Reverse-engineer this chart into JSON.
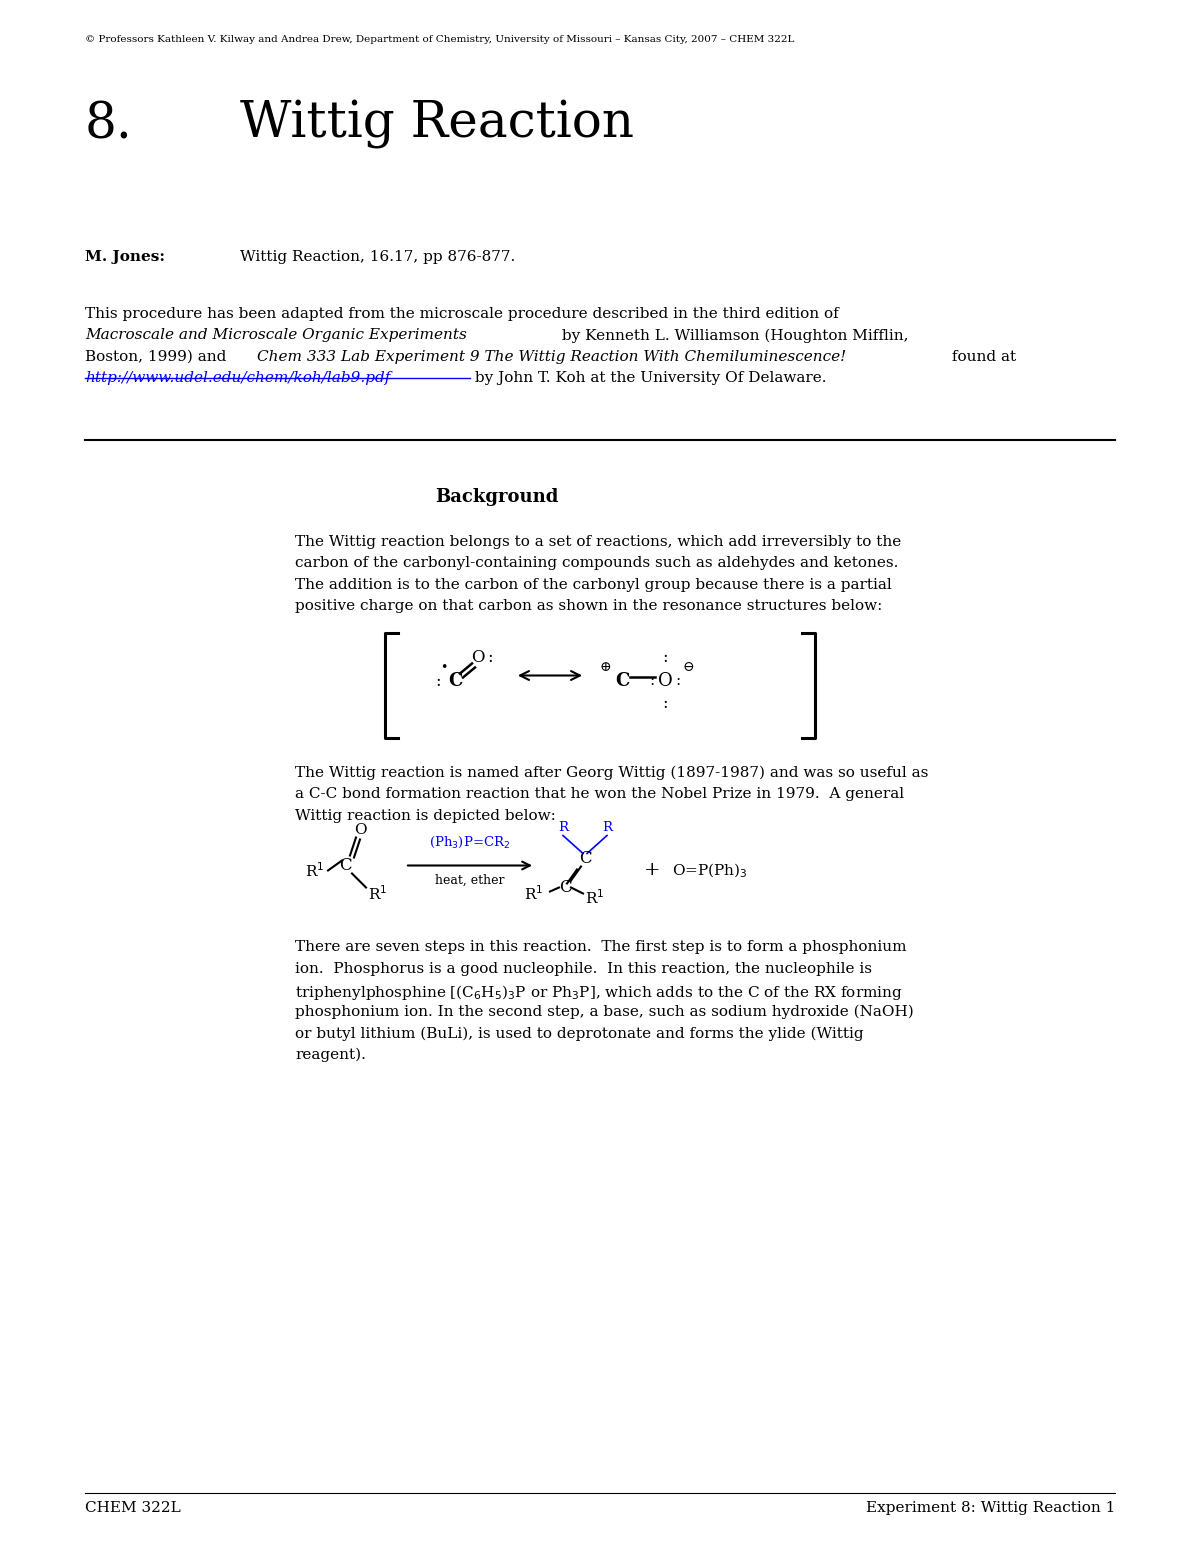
{
  "bg_color": "#ffffff",
  "page_width": 12.0,
  "page_height": 15.53,
  "copyright_text": "© Professors Kathleen V. Kilway and Andrea Drew, Department of Chemistry, University of Missouri – Kansas City, 2007 – CHEM 322L",
  "title_number": "8.",
  "title_text": "Wittig Reaction",
  "mjones_label": "M. Jones:",
  "mjones_value": "Wittig Reaction, 16.17, pp 876-877.",
  "intro_line1": "This procedure has been adapted from the microscale procedure described in the third edition of",
  "intro_line2_italic": "Macroscale and Microscale Organic Experiments",
  "intro_line2_normal": " by Kenneth L. Williamson (Houghton Mifflin,",
  "intro_line3_normal1": "Boston, 1999) and ",
  "intro_line3_italic": "Chem 333 Lab Experiment 9 The Wittig Reaction With Chemiluminescence!",
  "intro_line3_end": " found at",
  "url_text": "http://www.udel.edu/chem/koh/lab9.pdf",
  "intro_line4_end": " by John T. Koh at the University Of Delaware.",
  "background_heading": "Background",
  "bg_para1_line1": "The Wittig reaction belongs to a set of reactions, which add irreversibly to the",
  "bg_para1_line2": "carbon of the carbonyl-containing compounds such as aldehydes and ketones.",
  "bg_para1_line3": "The addition is to the carbon of the carbonyl group because there is a partial",
  "bg_para1_line4": "positive charge on that carbon as shown in the resonance structures below:",
  "bg_para2_line1": "The Wittig reaction is named after Georg Wittig (1897-1987) and was so useful as",
  "bg_para2_line2": "a C-C bond formation reaction that he won the Nobel Prize in 1979.  A general",
  "bg_para2_line3": "Wittig reaction is depicted below:",
  "bg_para3_line1": "There are seven steps in this reaction.  The first step is to form a phosphonium",
  "bg_para3_line2": "ion.  Phosphorus is a good nucleophile.  In this reaction, the nucleophile is",
  "bg_para3_line3": "triphenylphosphine [(C$_6$H$_5$)$_3$P or Ph$_3$P], which adds to the C of the RX forming",
  "bg_para3_line4": "phosphonium ion. In the second step, a base, such as sodium hydroxide (NaOH)",
  "bg_para3_line5": "or butyl lithium (BuLi), is used to deprotonate and forms the ylide (Wittig",
  "bg_para3_line6": "reagent).",
  "footer_left": "CHEM 322L",
  "footer_right": "Experiment 8: Wittig Reaction 1"
}
